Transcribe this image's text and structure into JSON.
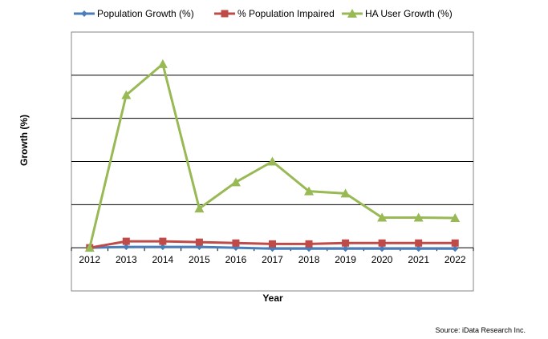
{
  "chart_data": {
    "type": "line",
    "title": "",
    "xlabel": "Year",
    "ylabel": "Growth (%)",
    "categories": [
      "2012",
      "2013",
      "2014",
      "2015",
      "2016",
      "2017",
      "2018",
      "2019",
      "2020",
      "2021",
      "2022"
    ],
    "ylim": [
      -1,
      5
    ],
    "y_unit_note_hidden": null,
    "grid": true,
    "legend_position": "top",
    "series": [
      {
        "name": "Population Growth (%)",
        "color": "#4a7ebb",
        "marker": "diamond",
        "values": [
          0,
          0.02,
          0.02,
          0.02,
          0.0,
          -0.02,
          -0.02,
          -0.02,
          -0.02,
          -0.02,
          -0.02
        ]
      },
      {
        "name": "% Population Impaired",
        "color": "#be4b48",
        "marker": "square",
        "values": [
          0,
          0.15,
          0.15,
          0.13,
          0.11,
          0.09,
          0.09,
          0.11,
          0.11,
          0.11,
          0.11
        ]
      },
      {
        "name": "HA User Growth (%)",
        "color": "#98b954",
        "marker": "triangle",
        "values": [
          0,
          3.54,
          4.26,
          0.91,
          1.52,
          2.0,
          1.31,
          1.26,
          0.7,
          0.7,
          0.69
        ]
      }
    ],
    "source": "Source: iData Research Inc."
  }
}
